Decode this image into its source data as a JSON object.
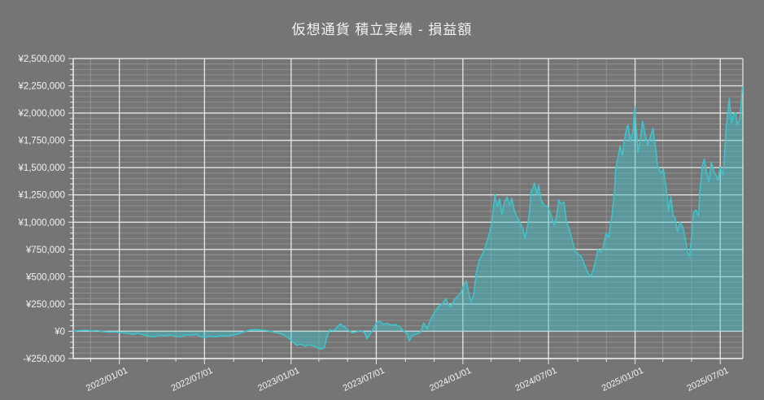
{
  "page": {
    "title": "仮想通貨 積立実績 - 損益額"
  },
  "colors": {
    "background": "#757575",
    "title_text": "#f2f2f2",
    "axis_text": "#f2f2f2",
    "major_grid": "#e8e8e8",
    "minor_grid": "#9a9a9a",
    "series_line": "#3fc2ca",
    "series_fill": "rgba(63,194,202,0.45)"
  },
  "chart_data": {
    "type": "area",
    "title": "仮想通貨 積立実績 - 損益額",
    "series_name": "損益額",
    "unit": "JPY",
    "xlabel": "",
    "ylabel": "",
    "grid": true,
    "legend": false,
    "ylim": [
      -250000,
      2500000
    ],
    "y_major_step": 250000,
    "y_minor_step": 50000,
    "x_domain": [
      "2021-09-25",
      "2025-08-18"
    ],
    "x_minor_step_months": 2,
    "y_ticks": [
      -250000,
      0,
      250000,
      500000,
      750000,
      1000000,
      1250000,
      1500000,
      1750000,
      2000000,
      2250000,
      2500000
    ],
    "y_tick_labels": [
      "-¥250,000",
      "¥0",
      "¥250,000",
      "¥500,000",
      "¥750,000",
      "¥1,000,000",
      "¥1,250,000",
      "¥1,500,000",
      "¥1,750,000",
      "¥2,000,000",
      "¥2,250,000",
      "¥2,500,000"
    ],
    "x_ticks": [
      "2022-01-01",
      "2022-07-01",
      "2023-01-01",
      "2023-07-01",
      "2024-01-01",
      "2024-07-01",
      "2025-01-01",
      "2025-07-01"
    ],
    "x_tick_labels": [
      "2022/01/01",
      "2022/07/01",
      "2023/01/01",
      "2023/07/01",
      "2024/01/01",
      "2024/07/01",
      "2025/01/01",
      "2025/07/01"
    ],
    "series": [
      {
        "name": "損益額",
        "points": [
          [
            "2021-09-25",
            0
          ],
          [
            "2021-10-07",
            6000
          ],
          [
            "2021-10-21",
            10000
          ],
          [
            "2021-11-02",
            4000
          ],
          [
            "2021-11-16",
            6000
          ],
          [
            "2021-11-28",
            -4000
          ],
          [
            "2021-12-12",
            -8000
          ],
          [
            "2021-12-24",
            -6000
          ],
          [
            "2022-01-07",
            -14000
          ],
          [
            "2022-01-19",
            -20000
          ],
          [
            "2022-01-29",
            -28000
          ],
          [
            "2022-02-10",
            -20000
          ],
          [
            "2022-02-21",
            -32000
          ],
          [
            "2022-03-03",
            -45000
          ],
          [
            "2022-03-17",
            -52000
          ],
          [
            "2022-03-27",
            -36000
          ],
          [
            "2022-04-08",
            -40000
          ],
          [
            "2022-04-20",
            -34000
          ],
          [
            "2022-05-01",
            -46000
          ],
          [
            "2022-05-11",
            -52000
          ],
          [
            "2022-05-22",
            -32000
          ],
          [
            "2022-06-03",
            -35000
          ],
          [
            "2022-06-13",
            -28000
          ],
          [
            "2022-06-22",
            -48000
          ],
          [
            "2022-07-02",
            -56000
          ],
          [
            "2022-07-12",
            -46000
          ],
          [
            "2022-07-23",
            -52000
          ],
          [
            "2022-08-04",
            -41000
          ],
          [
            "2022-08-16",
            -44000
          ],
          [
            "2022-08-28",
            -36000
          ],
          [
            "2022-09-09",
            -27000
          ],
          [
            "2022-09-21",
            -8000
          ],
          [
            "2022-10-03",
            9000
          ],
          [
            "2022-10-16",
            17000
          ],
          [
            "2022-10-24",
            14000
          ],
          [
            "2022-11-04",
            9000
          ],
          [
            "2022-11-16",
            3000
          ],
          [
            "2022-11-26",
            -8000
          ],
          [
            "2022-12-06",
            -18000
          ],
          [
            "2022-12-17",
            -32000
          ],
          [
            "2022-12-25",
            -58000
          ],
          [
            "2023-01-05",
            -98000
          ],
          [
            "2023-01-13",
            -128000
          ],
          [
            "2023-01-22",
            -118000
          ],
          [
            "2023-01-31",
            -138000
          ],
          [
            "2023-02-08",
            -124000
          ],
          [
            "2023-02-19",
            -136000
          ],
          [
            "2023-02-27",
            -152000
          ],
          [
            "2023-03-06",
            -163000
          ],
          [
            "2023-03-13",
            -148000
          ],
          [
            "2023-03-18",
            -55000
          ],
          [
            "2023-03-24",
            14000
          ],
          [
            "2023-04-01",
            6000
          ],
          [
            "2023-04-08",
            32000
          ],
          [
            "2023-04-15",
            68000
          ],
          [
            "2023-04-24",
            42000
          ],
          [
            "2023-05-02",
            12000
          ],
          [
            "2023-05-11",
            -14000
          ],
          [
            "2023-05-20",
            -6000
          ],
          [
            "2023-05-28",
            6000
          ],
          [
            "2023-06-06",
            -10000
          ],
          [
            "2023-06-11",
            -68000
          ],
          [
            "2023-06-18",
            -24000
          ],
          [
            "2023-06-25",
            24000
          ],
          [
            "2023-07-02",
            82000
          ],
          [
            "2023-07-09",
            90000
          ],
          [
            "2023-07-16",
            64000
          ],
          [
            "2023-07-24",
            72000
          ],
          [
            "2023-08-02",
            56000
          ],
          [
            "2023-08-11",
            62000
          ],
          [
            "2023-08-19",
            44000
          ],
          [
            "2023-08-28",
            4000
          ],
          [
            "2023-09-04",
            -22000
          ],
          [
            "2023-09-09",
            -88000
          ],
          [
            "2023-09-16",
            -36000
          ],
          [
            "2023-09-25",
            -26000
          ],
          [
            "2023-10-03",
            -10000
          ],
          [
            "2023-10-10",
            78000
          ],
          [
            "2023-10-17",
            22000
          ],
          [
            "2023-10-24",
            105000
          ],
          [
            "2023-11-02",
            178000
          ],
          [
            "2023-11-10",
            225000
          ],
          [
            "2023-11-19",
            258000
          ],
          [
            "2023-11-26",
            298000
          ],
          [
            "2023-12-01",
            248000
          ],
          [
            "2023-12-06",
            222000
          ],
          [
            "2023-12-13",
            282000
          ],
          [
            "2023-12-20",
            318000
          ],
          [
            "2023-12-27",
            345000
          ],
          [
            "2024-01-03",
            420000
          ],
          [
            "2024-01-08",
            462000
          ],
          [
            "2024-01-13",
            360000
          ],
          [
            "2024-01-18",
            268000
          ],
          [
            "2024-01-24",
            330000
          ],
          [
            "2024-01-29",
            520000
          ],
          [
            "2024-02-05",
            655000
          ],
          [
            "2024-02-12",
            710000
          ],
          [
            "2024-02-19",
            790000
          ],
          [
            "2024-02-25",
            880000
          ],
          [
            "2024-03-03",
            990000
          ],
          [
            "2024-03-09",
            1255000
          ],
          [
            "2024-03-14",
            1140000
          ],
          [
            "2024-03-19",
            1215000
          ],
          [
            "2024-03-24",
            1075000
          ],
          [
            "2024-03-29",
            1180000
          ],
          [
            "2024-04-04",
            1230000
          ],
          [
            "2024-04-09",
            1155000
          ],
          [
            "2024-04-14",
            1218000
          ],
          [
            "2024-04-19",
            1115000
          ],
          [
            "2024-04-24",
            1055000
          ],
          [
            "2024-05-01",
            1000000
          ],
          [
            "2024-05-08",
            935000
          ],
          [
            "2024-05-12",
            850000
          ],
          [
            "2024-05-17",
            955000
          ],
          [
            "2024-05-22",
            1105000
          ],
          [
            "2024-05-25",
            1280000
          ],
          [
            "2024-05-29",
            1315000
          ],
          [
            "2024-06-01",
            1358000
          ],
          [
            "2024-06-07",
            1255000
          ],
          [
            "2024-06-10",
            1340000
          ],
          [
            "2024-06-15",
            1205000
          ],
          [
            "2024-06-22",
            1150000
          ],
          [
            "2024-06-29",
            1145000
          ],
          [
            "2024-07-04",
            1095000
          ],
          [
            "2024-07-09",
            1030000
          ],
          [
            "2024-07-13",
            975000
          ],
          [
            "2024-07-18",
            1055000
          ],
          [
            "2024-07-23",
            1205000
          ],
          [
            "2024-07-28",
            1165000
          ],
          [
            "2024-08-03",
            1185000
          ],
          [
            "2024-08-08",
            1005000
          ],
          [
            "2024-08-15",
            925000
          ],
          [
            "2024-08-22",
            805000
          ],
          [
            "2024-08-27",
            730000
          ],
          [
            "2024-09-03",
            705000
          ],
          [
            "2024-09-08",
            688000
          ],
          [
            "2024-09-13",
            640000
          ],
          [
            "2024-09-18",
            585000
          ],
          [
            "2024-09-23",
            532000
          ],
          [
            "2024-09-29",
            505000
          ],
          [
            "2024-10-04",
            562000
          ],
          [
            "2024-10-09",
            645000
          ],
          [
            "2024-10-14",
            748000
          ],
          [
            "2024-10-21",
            722000
          ],
          [
            "2024-10-26",
            782000
          ],
          [
            "2024-10-31",
            895000
          ],
          [
            "2024-11-06",
            862000
          ],
          [
            "2024-11-13",
            1070000
          ],
          [
            "2024-11-18",
            1268000
          ],
          [
            "2024-11-21",
            1490000
          ],
          [
            "2024-11-26",
            1598000
          ],
          [
            "2024-11-30",
            1700000
          ],
          [
            "2024-12-05",
            1615000
          ],
          [
            "2024-12-09",
            1748000
          ],
          [
            "2024-12-14",
            1860000
          ],
          [
            "2024-12-17",
            1888000
          ],
          [
            "2024-12-22",
            1740000
          ],
          [
            "2024-12-28",
            1845000
          ],
          [
            "2024-12-31",
            2060000
          ],
          [
            "2025-01-03",
            1895000
          ],
          [
            "2025-01-07",
            1645000
          ],
          [
            "2025-01-12",
            1752000
          ],
          [
            "2025-01-17",
            1925000
          ],
          [
            "2025-01-22",
            1815000
          ],
          [
            "2025-01-28",
            1705000
          ],
          [
            "2025-02-03",
            1790000
          ],
          [
            "2025-02-08",
            1862000
          ],
          [
            "2025-02-13",
            1698000
          ],
          [
            "2025-02-18",
            1508000
          ],
          [
            "2025-02-25",
            1448000
          ],
          [
            "2025-03-02",
            1488000
          ],
          [
            "2025-03-08",
            1322000
          ],
          [
            "2025-03-13",
            1105000
          ],
          [
            "2025-03-18",
            1232000
          ],
          [
            "2025-03-23",
            1062000
          ],
          [
            "2025-03-27",
            1038000
          ],
          [
            "2025-04-01",
            912000
          ],
          [
            "2025-04-06",
            1002000
          ],
          [
            "2025-04-13",
            950000
          ],
          [
            "2025-04-18",
            838000
          ],
          [
            "2025-04-23",
            715000
          ],
          [
            "2025-04-27",
            690000
          ],
          [
            "2025-05-02",
            905000
          ],
          [
            "2025-05-05",
            1082000
          ],
          [
            "2025-05-10",
            1112000
          ],
          [
            "2025-05-16",
            1062000
          ],
          [
            "2025-05-19",
            1295000
          ],
          [
            "2025-05-24",
            1518000
          ],
          [
            "2025-05-28",
            1578000
          ],
          [
            "2025-06-02",
            1452000
          ],
          [
            "2025-06-07",
            1372000
          ],
          [
            "2025-06-12",
            1552000
          ],
          [
            "2025-06-17",
            1468000
          ],
          [
            "2025-06-23",
            1422000
          ],
          [
            "2025-06-26",
            1385000
          ],
          [
            "2025-07-01",
            1502000
          ],
          [
            "2025-07-07",
            1432000
          ],
          [
            "2025-07-10",
            1598000
          ],
          [
            "2025-07-13",
            1848000
          ],
          [
            "2025-07-17",
            2000000
          ],
          [
            "2025-07-20",
            2135000
          ],
          [
            "2025-07-25",
            1905000
          ],
          [
            "2025-07-29",
            1988000
          ],
          [
            "2025-08-03",
            2000000
          ],
          [
            "2025-08-06",
            1892000
          ],
          [
            "2025-08-12",
            1948000
          ],
          [
            "2025-08-17",
            2240000
          ]
        ]
      }
    ]
  }
}
